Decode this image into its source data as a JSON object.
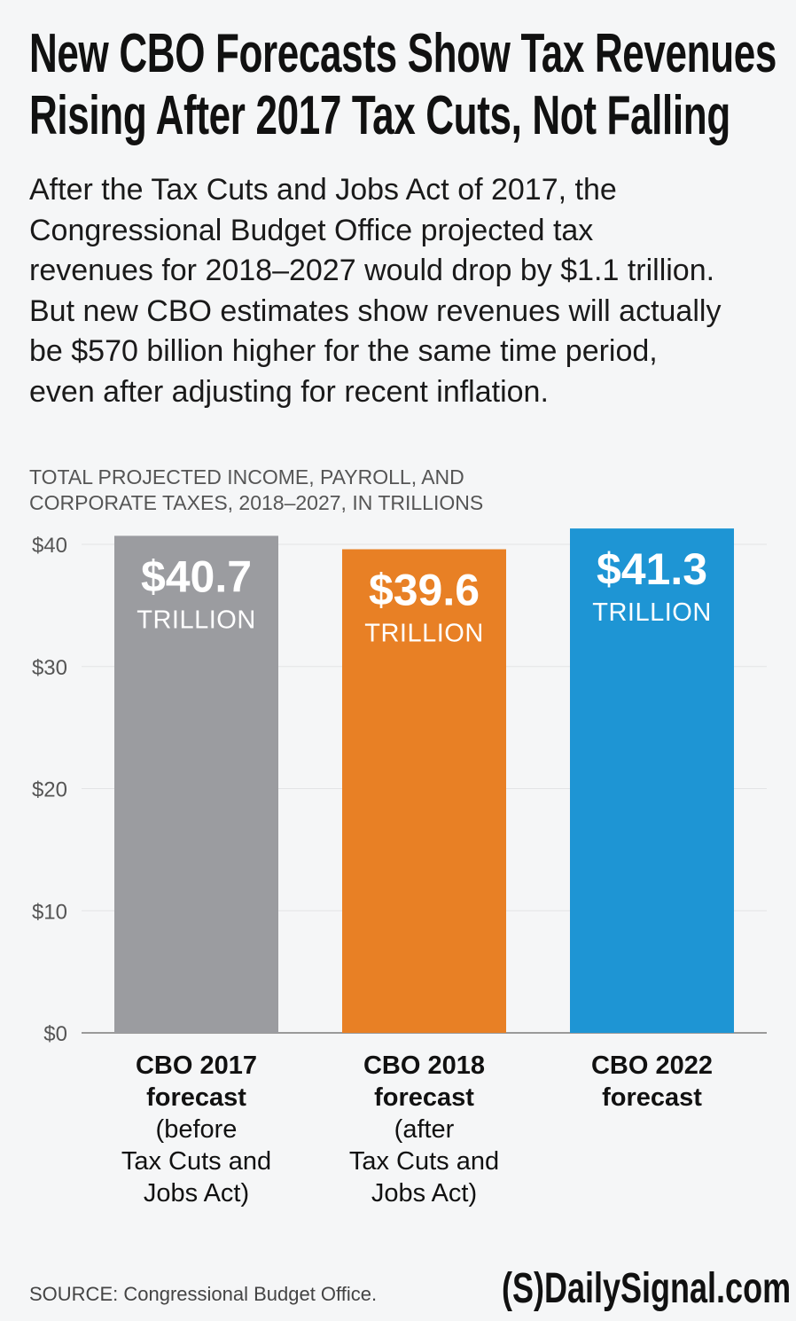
{
  "title_lines": [
    "New CBO Forecasts Show Tax Revenues",
    "Rising After 2017 Tax Cuts, Not Falling"
  ],
  "subtitle_lines": [
    "After the Tax Cuts and Jobs Act of 2017, the",
    "Congressional Budget Office projected tax",
    "revenues for 2018–2027 would drop by $1.1 trillion.",
    "But new CBO estimates show revenues will actually",
    "be $570 billion higher for the same time period,",
    "even after adjusting for recent inflation."
  ],
  "chart_data": {
    "type": "bar",
    "ylabel_lines": [
      "TOTAL PROJECTED INCOME, PAYROLL, AND",
      "CORPORATE TAXES, 2018–2027, IN TRILLIONS"
    ],
    "ylim": [
      0,
      40
    ],
    "yticks": [
      0,
      10,
      20,
      30,
      40
    ],
    "ytick_labels": [
      "$0",
      "$10",
      "$20",
      "$30",
      "$40"
    ],
    "grid": true,
    "categories": [
      {
        "bold": [
          "CBO 2017",
          "forecast"
        ],
        "regular": [
          "(before",
          "Tax Cuts and",
          "Jobs Act)"
        ]
      },
      {
        "bold": [
          "CBO 2018",
          "forecast"
        ],
        "regular": [
          "(after",
          "Tax Cuts and",
          "Jobs Act)"
        ]
      },
      {
        "bold": [
          "CBO 2022",
          "forecast"
        ],
        "regular": []
      }
    ],
    "values": [
      40.7,
      39.6,
      41.3
    ],
    "value_labels": [
      "$40.7",
      "$39.6",
      "$41.3"
    ],
    "unit_label": "TRILLION",
    "colors": [
      "#9b9ca0",
      "#e88025",
      "#1e95d4"
    ]
  },
  "source": "SOURCE: Congressional Budget Office.",
  "logo": "(S)DailySignal.com"
}
